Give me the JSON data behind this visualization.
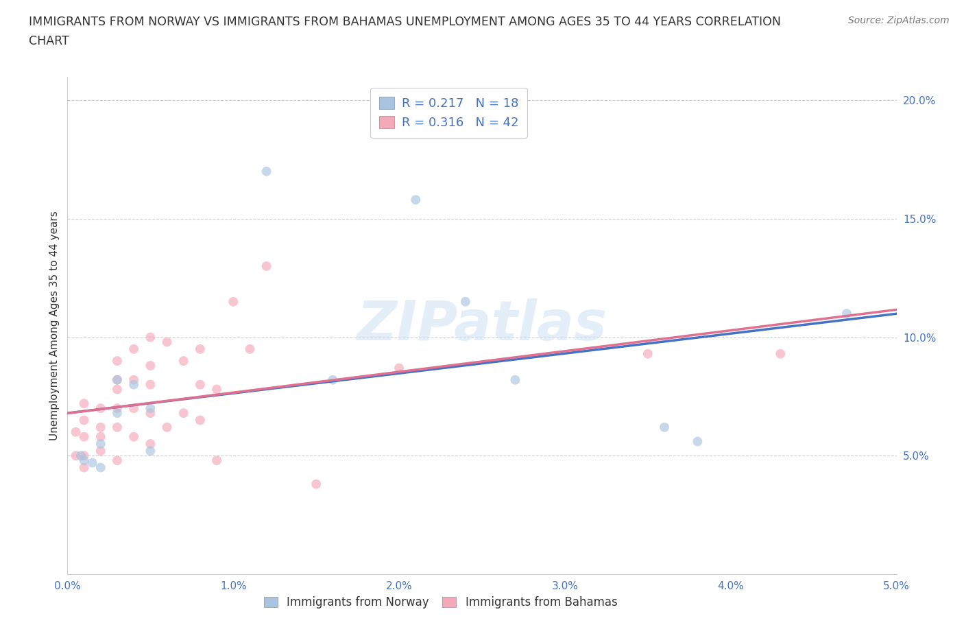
{
  "title_line1": "IMMIGRANTS FROM NORWAY VS IMMIGRANTS FROM BAHAMAS UNEMPLOYMENT AMONG AGES 35 TO 44 YEARS CORRELATION",
  "title_line2": "CHART",
  "source": "Source: ZipAtlas.com",
  "ylabel_label": "Unemployment Among Ages 35 to 44 years",
  "xlim": [
    0.0,
    0.05
  ],
  "ylim": [
    0.0,
    0.21
  ],
  "x_ticks": [
    0.0,
    0.01,
    0.02,
    0.03,
    0.04,
    0.05
  ],
  "x_tick_labels": [
    "0.0%",
    "1.0%",
    "2.0%",
    "3.0%",
    "4.0%",
    "5.0%"
  ],
  "y_ticks": [
    0.05,
    0.1,
    0.15,
    0.2
  ],
  "y_tick_labels": [
    "5.0%",
    "10.0%",
    "15.0%",
    "20.0%"
  ],
  "norway_R": 0.217,
  "norway_N": 18,
  "bahamas_R": 0.316,
  "bahamas_N": 42,
  "norway_color": "#a8c4e0",
  "bahamas_color": "#f4a8b8",
  "norway_line_color": "#4472c4",
  "bahamas_line_color": "#e07090",
  "norway_x": [
    0.0008,
    0.001,
    0.0015,
    0.002,
    0.002,
    0.003,
    0.003,
    0.004,
    0.005,
    0.005,
    0.012,
    0.016,
    0.021,
    0.024,
    0.027,
    0.036,
    0.038,
    0.047
  ],
  "norway_y": [
    0.05,
    0.048,
    0.047,
    0.055,
    0.045,
    0.068,
    0.082,
    0.08,
    0.07,
    0.052,
    0.17,
    0.082,
    0.158,
    0.115,
    0.082,
    0.062,
    0.056,
    0.11
  ],
  "bahamas_x": [
    0.0005,
    0.0005,
    0.001,
    0.001,
    0.001,
    0.001,
    0.001,
    0.002,
    0.002,
    0.002,
    0.002,
    0.003,
    0.003,
    0.003,
    0.003,
    0.003,
    0.003,
    0.004,
    0.004,
    0.004,
    0.004,
    0.005,
    0.005,
    0.005,
    0.005,
    0.005,
    0.006,
    0.006,
    0.007,
    0.007,
    0.008,
    0.008,
    0.008,
    0.009,
    0.009,
    0.01,
    0.011,
    0.012,
    0.015,
    0.02,
    0.035,
    0.043
  ],
  "bahamas_y": [
    0.06,
    0.05,
    0.072,
    0.065,
    0.058,
    0.05,
    0.045,
    0.07,
    0.062,
    0.058,
    0.052,
    0.09,
    0.082,
    0.078,
    0.07,
    0.062,
    0.048,
    0.095,
    0.082,
    0.07,
    0.058,
    0.1,
    0.088,
    0.08,
    0.068,
    0.055,
    0.098,
    0.062,
    0.09,
    0.068,
    0.095,
    0.08,
    0.065,
    0.078,
    0.048,
    0.115,
    0.095,
    0.13,
    0.038,
    0.087,
    0.093,
    0.093
  ],
  "marker_size": 100,
  "alpha": 0.65,
  "grid_color": "#cccccc",
  "grid_linestyle": "--",
  "background_color": "#ffffff",
  "text_color": "#333333",
  "blue_color": "#4472c4"
}
